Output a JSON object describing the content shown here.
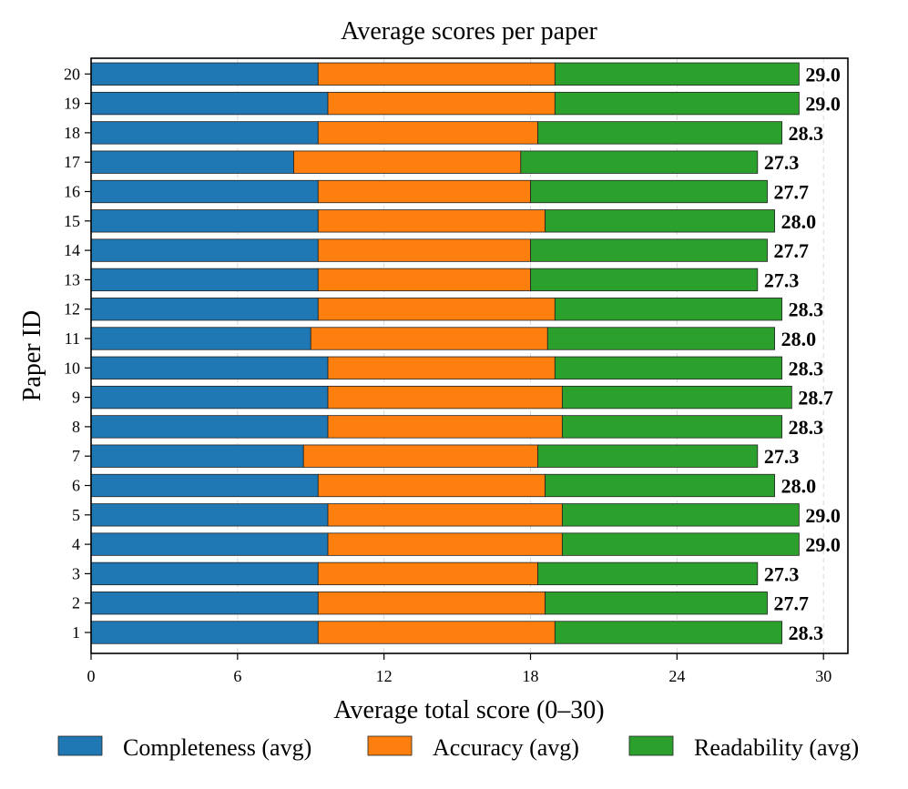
{
  "chart_data": {
    "type": "bar",
    "orientation": "horizontal",
    "stacked": true,
    "title": "Average scores per paper",
    "xlabel": "Average total score (0–30)",
    "ylabel": "Paper ID",
    "xlim": [
      0,
      31
    ],
    "xticks": [
      0,
      6,
      12,
      18,
      24,
      30
    ],
    "grid": true,
    "legend_position": "bottom",
    "categories": [
      "1",
      "2",
      "3",
      "4",
      "5",
      "6",
      "7",
      "8",
      "9",
      "10",
      "11",
      "12",
      "13",
      "14",
      "15",
      "16",
      "17",
      "18",
      "19",
      "20"
    ],
    "series": [
      {
        "name": "Completeness (avg)",
        "color": "#1f77b4",
        "values": [
          9.3,
          9.3,
          9.3,
          9.7,
          9.7,
          9.3,
          8.7,
          9.7,
          9.7,
          9.7,
          9.0,
          9.3,
          9.3,
          9.3,
          9.3,
          9.3,
          8.3,
          9.3,
          9.7,
          9.3
        ]
      },
      {
        "name": "Accuracy (avg)",
        "color": "#ff7f0e",
        "values": [
          9.7,
          9.3,
          9.0,
          9.6,
          9.6,
          9.3,
          9.6,
          9.6,
          9.6,
          9.3,
          9.7,
          9.7,
          8.7,
          8.7,
          9.3,
          8.7,
          9.3,
          9.0,
          9.3,
          9.7
        ]
      },
      {
        "name": "Readability (avg)",
        "color": "#2ca02c",
        "values": [
          9.3,
          9.1,
          9.0,
          9.7,
          9.7,
          9.4,
          9.0,
          9.0,
          9.4,
          9.3,
          9.3,
          9.3,
          9.3,
          9.7,
          9.4,
          9.7,
          9.7,
          10.0,
          10.0,
          10.0
        ]
      }
    ],
    "totals": [
      "28.3",
      "27.7",
      "27.3",
      "29.0",
      "29.0",
      "28.0",
      "27.3",
      "28.3",
      "28.7",
      "28.3",
      "28.0",
      "28.3",
      "27.3",
      "27.7",
      "28.0",
      "27.7",
      "27.3",
      "28.3",
      "29.0",
      "29.0"
    ]
  }
}
